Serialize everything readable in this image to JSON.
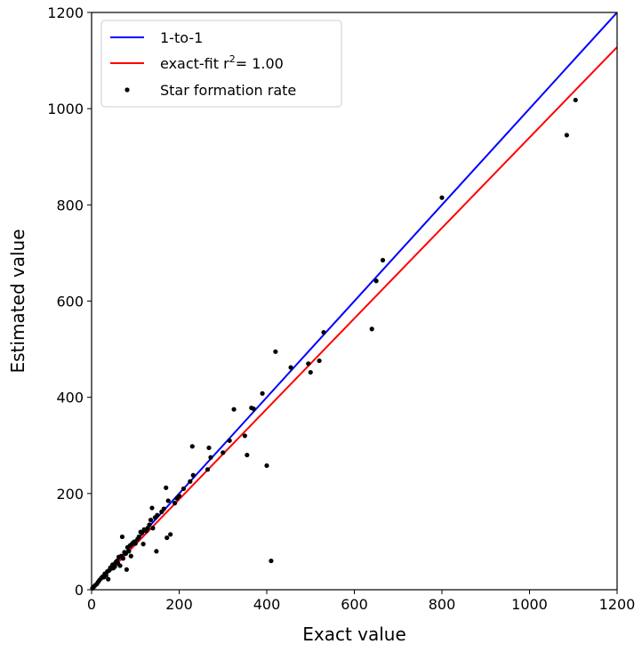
{
  "chart_data": {
    "type": "scatter",
    "xlabel": "Exact value",
    "ylabel": "Estimated value",
    "xlim": [
      0,
      1200
    ],
    "ylim": [
      0,
      1200
    ],
    "xticks": [
      "0",
      "200",
      "400",
      "600",
      "800",
      "1000",
      "1200"
    ],
    "yticks": [
      "0",
      "200",
      "400",
      "600",
      "800",
      "1000",
      "1200"
    ],
    "grid": false,
    "legend_position": "top-left",
    "legend": {
      "one_to_one": "1-to-1",
      "fit_prefix": "exact-fit r",
      "fit_sup": "2",
      "fit_suffix": "= 1.00",
      "points": "Star formation rate"
    },
    "lines": [
      {
        "name": "1-to-1",
        "color": "#0000ff",
        "x": [
          0,
          1200
        ],
        "y": [
          0,
          1200
        ]
      },
      {
        "name": "exact-fit r2= 1.00",
        "color": "#ff0000",
        "x": [
          0,
          1200
        ],
        "y": [
          0,
          1128
        ]
      }
    ],
    "series": [
      {
        "name": "Star formation rate",
        "color": "#000000",
        "points": [
          [
            2,
            3
          ],
          [
            5,
            6
          ],
          [
            8,
            9
          ],
          [
            12,
            12
          ],
          [
            15,
            16
          ],
          [
            18,
            20
          ],
          [
            22,
            24
          ],
          [
            25,
            27
          ],
          [
            28,
            26
          ],
          [
            30,
            33
          ],
          [
            33,
            30
          ],
          [
            36,
            38
          ],
          [
            38,
            22
          ],
          [
            40,
            40
          ],
          [
            43,
            46
          ],
          [
            45,
            44
          ],
          [
            48,
            52
          ],
          [
            50,
            45
          ],
          [
            53,
            48
          ],
          [
            55,
            57
          ],
          [
            58,
            60
          ],
          [
            60,
            55
          ],
          [
            62,
            68
          ],
          [
            65,
            50
          ],
          [
            68,
            70
          ],
          [
            70,
            110
          ],
          [
            72,
            65
          ],
          [
            75,
            78
          ],
          [
            78,
            75
          ],
          [
            80,
            42
          ],
          [
            82,
            88
          ],
          [
            85,
            80
          ],
          [
            88,
            92
          ],
          [
            90,
            70
          ],
          [
            92,
            95
          ],
          [
            95,
            98
          ],
          [
            98,
            100
          ],
          [
            100,
            96
          ],
          [
            105,
            105
          ],
          [
            108,
            110
          ],
          [
            112,
            120
          ],
          [
            115,
            118
          ],
          [
            118,
            95
          ],
          [
            120,
            125
          ],
          [
            125,
            122
          ],
          [
            128,
            128
          ],
          [
            132,
            135
          ],
          [
            135,
            145
          ],
          [
            138,
            170
          ],
          [
            140,
            128
          ],
          [
            145,
            150
          ],
          [
            148,
            80
          ],
          [
            150,
            155
          ],
          [
            160,
            162
          ],
          [
            165,
            168
          ],
          [
            170,
            212
          ],
          [
            172,
            108
          ],
          [
            175,
            185
          ],
          [
            180,
            115
          ],
          [
            190,
            180
          ],
          [
            195,
            190
          ],
          [
            200,
            195
          ],
          [
            210,
            210
          ],
          [
            225,
            225
          ],
          [
            230,
            298
          ],
          [
            232,
            238
          ],
          [
            265,
            250
          ],
          [
            268,
            295
          ],
          [
            272,
            275
          ],
          [
            300,
            285
          ],
          [
            315,
            310
          ],
          [
            325,
            375
          ],
          [
            350,
            320
          ],
          [
            355,
            280
          ],
          [
            365,
            378
          ],
          [
            370,
            376
          ],
          [
            390,
            408
          ],
          [
            400,
            258
          ],
          [
            410,
            60
          ],
          [
            420,
            495
          ],
          [
            455,
            462
          ],
          [
            495,
            470
          ],
          [
            500,
            452
          ],
          [
            520,
            476
          ],
          [
            530,
            535
          ],
          [
            640,
            542
          ],
          [
            650,
            642
          ],
          [
            665,
            685
          ],
          [
            800,
            815
          ],
          [
            1085,
            945
          ],
          [
            1105,
            1018
          ]
        ]
      }
    ]
  }
}
